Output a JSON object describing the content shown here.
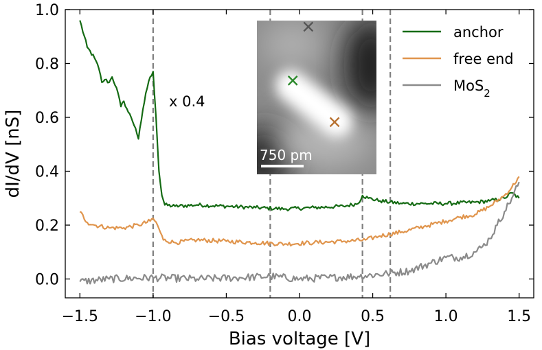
{
  "chart_data": {
    "type": "line",
    "xlabel": "Bias voltage [V]",
    "ylabel": "dI/dV [nS]",
    "xlim": [
      -1.6,
      1.6
    ],
    "ylim": [
      -0.07,
      1.0
    ],
    "xticks": [
      -1.5,
      -1.0,
      -0.5,
      0.0,
      0.5,
      1.0,
      1.5
    ],
    "xtick_labels": [
      "−1.5",
      "−1.0",
      "−0.5",
      "0.0",
      "0.5",
      "1.0",
      "1.5"
    ],
    "yticks": [
      0.0,
      0.2,
      0.4,
      0.6,
      0.8,
      1.0
    ],
    "ytick_labels": [
      "0.0",
      "0.2",
      "0.4",
      "0.6",
      "0.8",
      "1.0"
    ],
    "vertical_lines": [
      -1.0,
      -0.2,
      0.43,
      0.62
    ],
    "legend": {
      "position": "top-right"
    },
    "annotation": "x 0.4",
    "series": [
      {
        "name": "anchor",
        "color": "#156b14",
        "points": [
          [
            -1.5,
            0.96
          ],
          [
            -1.45,
            0.86
          ],
          [
            -1.4,
            0.82
          ],
          [
            -1.37,
            0.78
          ],
          [
            -1.35,
            0.73
          ],
          [
            -1.33,
            0.74
          ],
          [
            -1.3,
            0.73
          ],
          [
            -1.28,
            0.75
          ],
          [
            -1.25,
            0.71
          ],
          [
            -1.22,
            0.64
          ],
          [
            -1.2,
            0.66
          ],
          [
            -1.17,
            0.62
          ],
          [
            -1.15,
            0.6
          ],
          [
            -1.12,
            0.56
          ],
          [
            -1.1,
            0.52
          ],
          [
            -1.08,
            0.59
          ],
          [
            -1.05,
            0.69
          ],
          [
            -1.02,
            0.75
          ],
          [
            -1.0,
            0.77
          ],
          [
            -0.98,
            0.6
          ],
          [
            -0.96,
            0.4
          ],
          [
            -0.94,
            0.31
          ],
          [
            -0.92,
            0.275
          ],
          [
            -0.85,
            0.27
          ],
          [
            -0.7,
            0.275
          ],
          [
            -0.5,
            0.27
          ],
          [
            -0.3,
            0.265
          ],
          [
            -0.1,
            0.26
          ],
          [
            0.1,
            0.265
          ],
          [
            0.3,
            0.27
          ],
          [
            0.4,
            0.28
          ],
          [
            0.43,
            0.31
          ],
          [
            0.47,
            0.3
          ],
          [
            0.55,
            0.29
          ],
          [
            0.7,
            0.28
          ],
          [
            0.85,
            0.28
          ],
          [
            1.0,
            0.28
          ],
          [
            1.2,
            0.285
          ],
          [
            1.3,
            0.29
          ],
          [
            1.4,
            0.3
          ],
          [
            1.45,
            0.32
          ],
          [
            1.5,
            0.3
          ]
        ],
        "noise": 0.007
      },
      {
        "name": "free end",
        "color": "#e0954d",
        "points": [
          [
            -1.5,
            0.25
          ],
          [
            -1.45,
            0.21
          ],
          [
            -1.4,
            0.2
          ],
          [
            -1.3,
            0.19
          ],
          [
            -1.2,
            0.19
          ],
          [
            -1.1,
            0.2
          ],
          [
            -1.02,
            0.215
          ],
          [
            -1.0,
            0.225
          ],
          [
            -0.97,
            0.2
          ],
          [
            -0.93,
            0.145
          ],
          [
            -0.85,
            0.135
          ],
          [
            -0.7,
            0.145
          ],
          [
            -0.5,
            0.14
          ],
          [
            -0.3,
            0.135
          ],
          [
            -0.1,
            0.13
          ],
          [
            0.1,
            0.135
          ],
          [
            0.3,
            0.14
          ],
          [
            0.45,
            0.145
          ],
          [
            0.55,
            0.16
          ],
          [
            0.7,
            0.175
          ],
          [
            0.85,
            0.195
          ],
          [
            1.0,
            0.215
          ],
          [
            1.1,
            0.23
          ],
          [
            1.2,
            0.24
          ],
          [
            1.3,
            0.27
          ],
          [
            1.4,
            0.31
          ],
          [
            1.45,
            0.34
          ],
          [
            1.5,
            0.38
          ]
        ],
        "noise": 0.008
      },
      {
        "name": "MoS$_2$",
        "color": "#8a8a8a",
        "points": [
          [
            -1.5,
            -0.01
          ],
          [
            -1.3,
            0.0
          ],
          [
            -1.0,
            0.005
          ],
          [
            -0.7,
            0.0
          ],
          [
            -0.4,
            0.005
          ],
          [
            -0.2,
            0.01
          ],
          [
            0.0,
            0.0
          ],
          [
            0.2,
            0.005
          ],
          [
            0.4,
            0.01
          ],
          [
            0.6,
            0.02
          ],
          [
            0.75,
            0.03
          ],
          [
            0.9,
            0.06
          ],
          [
            1.0,
            0.08
          ],
          [
            1.1,
            0.08
          ],
          [
            1.2,
            0.1
          ],
          [
            1.25,
            0.12
          ],
          [
            1.3,
            0.15
          ],
          [
            1.35,
            0.2
          ],
          [
            1.4,
            0.25
          ],
          [
            1.45,
            0.3
          ],
          [
            1.5,
            0.36
          ]
        ],
        "noise": 0.014
      }
    ],
    "inset": {
      "scalebar_label": "750 pm",
      "markers": [
        {
          "color": "#555555",
          "u": 0.43,
          "v": 0.04
        },
        {
          "color": "#2e8b2e",
          "u": 0.3,
          "v": 0.39
        },
        {
          "color": "#b87333",
          "u": 0.65,
          "v": 0.66
        }
      ]
    }
  }
}
